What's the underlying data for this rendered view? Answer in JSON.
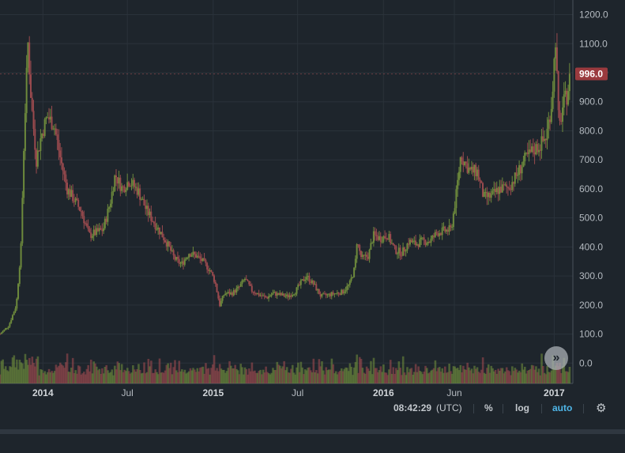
{
  "chart_data": {
    "type": "candlestick",
    "x_ticks": [
      "2014",
      "Jul",
      "2015",
      "Jul",
      "2016",
      "Jun",
      "2017"
    ],
    "y_ticks": [
      "1200.0",
      "1100.0",
      "1000.0",
      "900.0",
      "800.0",
      "700.0",
      "600.0",
      "500.0",
      "400.0",
      "300.0",
      "200.0",
      "100.0",
      "0.0"
    ],
    "ylim": [
      -65,
      1215
    ],
    "last_price": "996.0",
    "grid": true,
    "up_color": "#6d8a3c",
    "down_color": "#9a4a4e",
    "price_points": [
      [
        "2013-10-01",
        100
      ],
      [
        "2013-10-20",
        130
      ],
      [
        "2013-11-05",
        200
      ],
      [
        "2013-11-15",
        400
      ],
      [
        "2013-11-22",
        800
      ],
      [
        "2013-11-30",
        1100
      ],
      [
        "2013-12-07",
        900
      ],
      [
        "2013-12-18",
        700
      ],
      [
        "2013-12-28",
        780
      ],
      [
        "2014-01-10",
        850
      ],
      [
        "2014-01-25",
        820
      ],
      [
        "2014-02-08",
        700
      ],
      [
        "2014-02-22",
        600
      ],
      [
        "2014-03-10",
        560
      ],
      [
        "2014-03-25",
        520
      ],
      [
        "2014-04-10",
        440
      ],
      [
        "2014-04-25",
        450
      ],
      [
        "2014-05-10",
        460
      ],
      [
        "2014-05-25",
        550
      ],
      [
        "2014-06-05",
        650
      ],
      [
        "2014-06-20",
        600
      ],
      [
        "2014-07-05",
        630
      ],
      [
        "2014-07-25",
        590
      ],
      [
        "2014-08-10",
        530
      ],
      [
        "2014-08-25",
        490
      ],
      [
        "2014-09-10",
        450
      ],
      [
        "2014-09-25",
        410
      ],
      [
        "2014-10-10",
        360
      ],
      [
        "2014-10-25",
        340
      ],
      [
        "2014-11-10",
        380
      ],
      [
        "2014-11-25",
        370
      ],
      [
        "2014-12-10",
        350
      ],
      [
        "2014-12-25",
        320
      ],
      [
        "2015-01-05",
        280
      ],
      [
        "2015-01-15",
        200
      ],
      [
        "2015-01-25",
        240
      ],
      [
        "2015-02-10",
        240
      ],
      [
        "2015-02-25",
        260
      ],
      [
        "2015-03-10",
        290
      ],
      [
        "2015-03-25",
        250
      ],
      [
        "2015-04-10",
        235
      ],
      [
        "2015-04-25",
        225
      ],
      [
        "2015-05-10",
        240
      ],
      [
        "2015-05-25",
        235
      ],
      [
        "2015-06-10",
        230
      ],
      [
        "2015-06-25",
        245
      ],
      [
        "2015-07-10",
        280
      ],
      [
        "2015-07-20",
        300
      ],
      [
        "2015-08-05",
        270
      ],
      [
        "2015-08-20",
        230
      ],
      [
        "2015-09-05",
        235
      ],
      [
        "2015-09-20",
        240
      ],
      [
        "2015-10-05",
        245
      ],
      [
        "2015-10-20",
        270
      ],
      [
        "2015-11-01",
        330
      ],
      [
        "2015-11-05",
        420
      ],
      [
        "2015-11-15",
        360
      ],
      [
        "2015-11-30",
        370
      ],
      [
        "2015-12-10",
        440
      ],
      [
        "2015-12-25",
        430
      ],
      [
        "2016-01-10",
        440
      ],
      [
        "2016-01-25",
        390
      ],
      [
        "2016-02-10",
        380
      ],
      [
        "2016-02-25",
        420
      ],
      [
        "2016-03-10",
        410
      ],
      [
        "2016-03-25",
        420
      ],
      [
        "2016-04-10",
        420
      ],
      [
        "2016-04-25",
        450
      ],
      [
        "2016-05-10",
        455
      ],
      [
        "2016-05-25",
        460
      ],
      [
        "2016-06-05",
        580
      ],
      [
        "2016-06-15",
        720
      ],
      [
        "2016-06-20",
        700
      ],
      [
        "2016-07-05",
        660
      ],
      [
        "2016-07-20",
        660
      ],
      [
        "2016-08-03",
        570
      ],
      [
        "2016-08-20",
        575
      ],
      [
        "2016-09-05",
        600
      ],
      [
        "2016-09-25",
        605
      ],
      [
        "2016-10-10",
        640
      ],
      [
        "2016-10-30",
        700
      ],
      [
        "2016-11-15",
        730
      ],
      [
        "2016-12-01",
        750
      ],
      [
        "2016-12-15",
        780
      ],
      [
        "2016-12-27",
        900
      ],
      [
        "2017-01-04",
        1120
      ],
      [
        "2017-01-11",
        800
      ],
      [
        "2017-01-20",
        890
      ],
      [
        "2017-01-28",
        920
      ],
      [
        "2017-02-05",
        996
      ]
    ]
  },
  "toolbar": {
    "time": "08:42:29",
    "timezone": "(UTC)",
    "percent_label": "%",
    "log_label": "log",
    "auto_label": "auto",
    "settings_icon": "gear-icon",
    "scroll_icon": "chevron-double-right-icon"
  }
}
